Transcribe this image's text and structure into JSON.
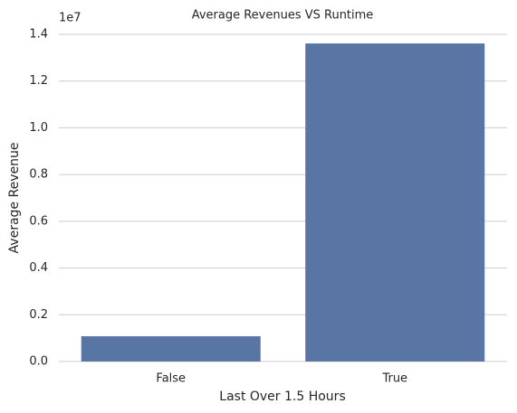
{
  "chart_data": {
    "type": "bar",
    "title": "Average Revenues VS Runtime",
    "xlabel": "Last Over 1.5 Hours",
    "ylabel": "Average Revenue",
    "y_offset_label": "1e7",
    "categories": [
      "False",
      "True"
    ],
    "values": [
      0.108,
      1.361
    ],
    "color": "#5975a4",
    "ylim": [
      0,
      1.4
    ],
    "yticks": [
      {
        "value": 0,
        "label": "0.0"
      },
      0.2,
      0.4,
      0.6,
      0.8,
      {
        "value": 1,
        "label": "1.0"
      },
      1.2,
      1.4
    ],
    "grid": true
  }
}
